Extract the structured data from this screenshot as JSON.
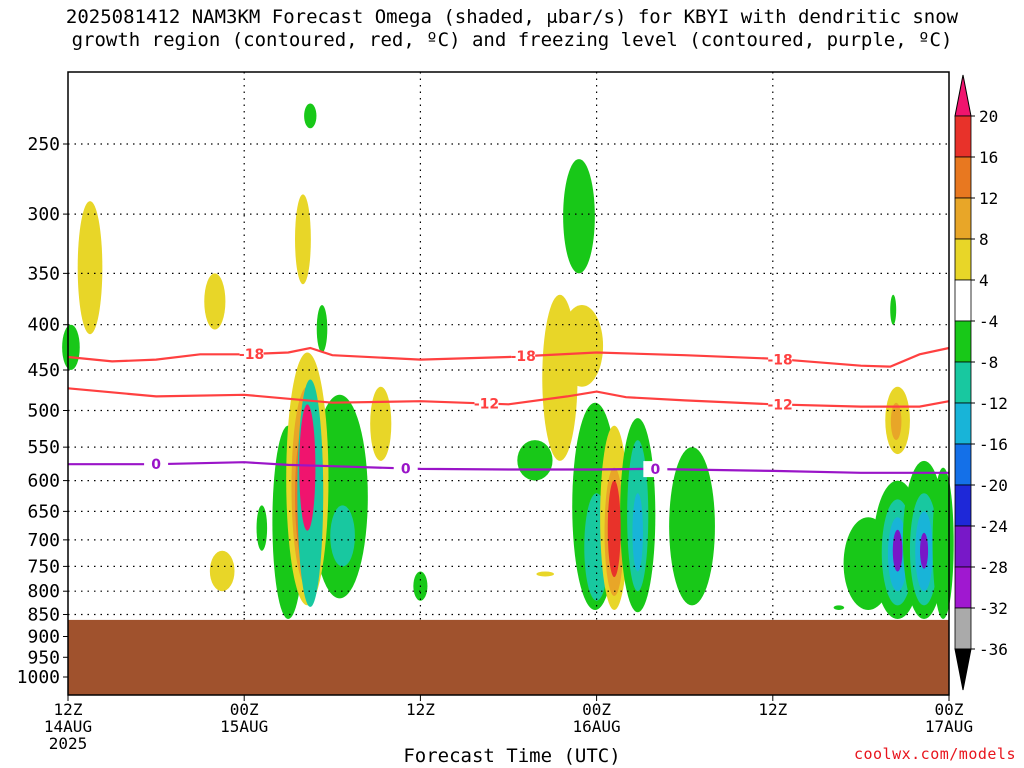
{
  "title_line1": "2025081412 NAM3KM Forecast Omega (shaded, μbar/s) for KBYI with dendritic snow",
  "title_line2": "growth region (contoured, red, ºC) and freezing level (contoured, purple, ºC)",
  "credit": "coolwx.com/models",
  "chart_data": {
    "type": "contour",
    "xlabel": "Forecast Time (UTC)",
    "x_ticks": [
      {
        "h": 0,
        "line1": "12Z",
        "line2": "14AUG",
        "line3": "2025"
      },
      {
        "h": 12,
        "line1": "00Z",
        "line2": "15AUG",
        "line3": ""
      },
      {
        "h": 24,
        "line1": "12Z",
        "line2": "",
        "line3": ""
      },
      {
        "h": 36,
        "line1": "00Z",
        "line2": "16AUG",
        "line3": ""
      },
      {
        "h": 48,
        "line1": "12Z",
        "line2": "",
        "line3": ""
      },
      {
        "h": 60,
        "line1": "00Z",
        "line2": "17AUG",
        "line3": ""
      }
    ],
    "xlim": [
      0,
      60
    ],
    "y_scale": "pressure (hPa), decreasing upward",
    "y_ticks": [
      250,
      300,
      350,
      400,
      450,
      500,
      550,
      600,
      650,
      700,
      750,
      800,
      850,
      900,
      950,
      1000
    ],
    "ylim": [
      1050,
      200
    ],
    "ground_pressure": 862,
    "colorbar": {
      "labels": [
        "20",
        "16",
        "12",
        "8",
        "4",
        "-4",
        "-8",
        "-12",
        "-16",
        "-20",
        "-24",
        "-28",
        "-32",
        "-36"
      ],
      "colors": [
        "#f0146e",
        "#e8322a",
        "#e87820",
        "#e8a628",
        "#e8d628",
        "#ffffff",
        "#18c818",
        "#18c8a0",
        "#18b4d8",
        "#1470e8",
        "#1e28d8",
        "#7818c8",
        "#a018d0",
        "#aaaaaa",
        "#000000"
      ]
    },
    "temperature_contours": [
      {
        "label": "-18",
        "color": "#ff4040",
        "points": [
          [
            0,
            435
          ],
          [
            3,
            440
          ],
          [
            6,
            438
          ],
          [
            9,
            432
          ],
          [
            12,
            432
          ],
          [
            15,
            430
          ],
          [
            16.5,
            425
          ],
          [
            18,
            433
          ],
          [
            24,
            438
          ],
          [
            30,
            435
          ],
          [
            36,
            430
          ],
          [
            42,
            433
          ],
          [
            48,
            437
          ],
          [
            54,
            445
          ],
          [
            56,
            446
          ],
          [
            58,
            432
          ],
          [
            60,
            425
          ]
        ],
        "label_hours": [
          12.5,
          31,
          48.5
        ]
      },
      {
        "label": "-12",
        "color": "#ff4040",
        "points": [
          [
            0,
            472
          ],
          [
            6,
            482
          ],
          [
            12,
            480
          ],
          [
            18,
            490
          ],
          [
            24,
            488
          ],
          [
            30,
            492
          ],
          [
            34,
            482
          ],
          [
            36,
            476
          ],
          [
            38,
            483
          ],
          [
            42,
            487
          ],
          [
            48,
            492
          ],
          [
            54,
            495
          ],
          [
            58,
            495
          ],
          [
            60,
            488
          ]
        ],
        "label_hours": [
          28.5,
          48.5
        ]
      },
      {
        "label": "0",
        "color": "#9a14c8",
        "points": [
          [
            0,
            575
          ],
          [
            6,
            575
          ],
          [
            12,
            572
          ],
          [
            15,
            576
          ],
          [
            18,
            578
          ],
          [
            24,
            582
          ],
          [
            30,
            583
          ],
          [
            36,
            583
          ],
          [
            39,
            582
          ],
          [
            42,
            583
          ],
          [
            48,
            585
          ],
          [
            54,
            588
          ],
          [
            60,
            588
          ]
        ],
        "label_hours": [
          6,
          23,
          40
        ]
      }
    ],
    "omega_shading": [
      {
        "note": "ascent pockets near 15AUG 06Z",
        "level": "-8",
        "center": [
          16.5,
          620
        ],
        "width_h": 1.6,
        "top": 290,
        "bottom": 850
      },
      {
        "note": "descent core 15AUG 06Z",
        "level": "20",
        "center": [
          16.3,
          580
        ],
        "width_h": 1.0,
        "top": 440,
        "bottom": 800
      },
      {
        "note": "descent core 16AUG 01Z",
        "level": "16",
        "center": [
          37.2,
          680
        ],
        "width_h": 0.8,
        "top": 500,
        "bottom": 790
      },
      {
        "note": "ascent core 16AUG 22Z",
        "level": "-24",
        "center": [
          56.5,
          720
        ],
        "width_h": 0.6,
        "top": 640,
        "bottom": 780
      },
      {
        "note": "ascent core 16AUG 23Z",
        "level": "-24",
        "center": [
          58.3,
          720
        ],
        "width_h": 0.5,
        "top": 650,
        "bottom": 770
      }
    ]
  }
}
